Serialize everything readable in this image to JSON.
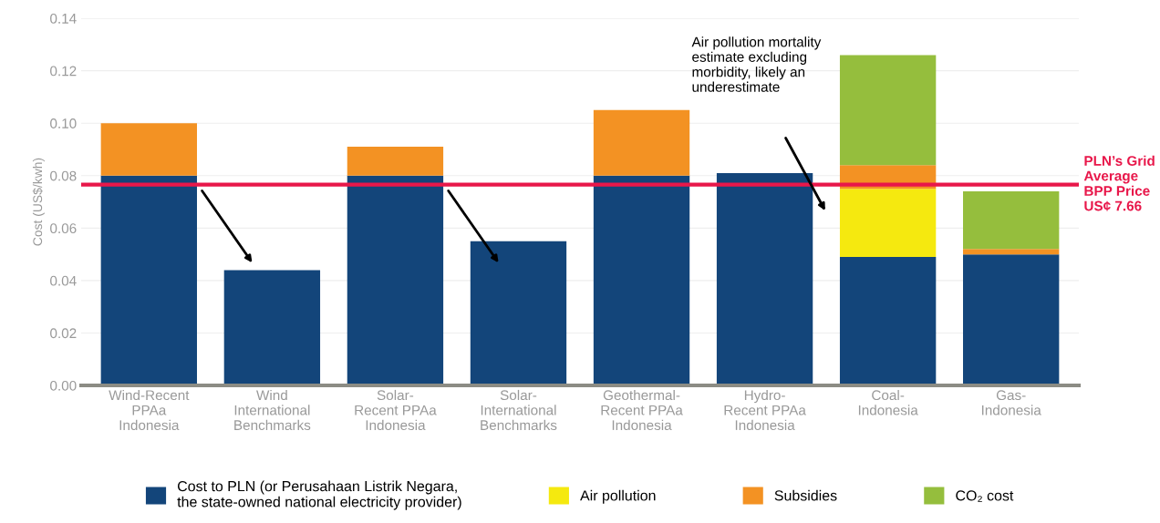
{
  "chart_data": {
    "type": "bar",
    "stacked": true,
    "ylabel": "Cost (US$/kwh)",
    "categories": [
      "Wind-Recent\nPPAa\nIndonesia",
      "Wind\nInternational\nBenchmarks",
      "Solar-\nRecent PPAa\nIndonesia",
      "Solar-\nInternational\nBenchmarks",
      "Geothermal-\nRecent PPAa\nIndonesia",
      "Hydro-\nRecent PPAa\nIndonesia",
      "Coal-\nIndonesia",
      "Gas-\nIndonesia"
    ],
    "series": [
      {
        "name": "Cost to PLN (or Perusahaan Listrik Negara,\nthe state-owned national electricity provider)",
        "color": "#13457a",
        "values": [
          0.08,
          0.044,
          0.08,
          0.055,
          0.08,
          0.081,
          0.049,
          0.05
        ]
      },
      {
        "name": "Air pollution",
        "color": "#f5e90f",
        "values": [
          0,
          0,
          0,
          0,
          0,
          0,
          0.026,
          0
        ]
      },
      {
        "name": "Subsidies",
        "color": "#f39223",
        "values": [
          0.02,
          0,
          0.011,
          0,
          0.025,
          0,
          0.009,
          0.002
        ]
      },
      {
        "name": "CO₂ cost",
        "color": "#95be3d",
        "values": [
          0,
          0,
          0,
          0,
          0,
          0,
          0.042,
          0.022
        ]
      }
    ],
    "ylim": [
      0,
      0.14
    ],
    "yticks": [
      {
        "value": 0,
        "label": "0.00"
      },
      {
        "value": 0.02,
        "label": "0.02"
      },
      {
        "value": 0.04,
        "label": "0.04"
      },
      {
        "value": 0.06,
        "label": "0.06"
      },
      {
        "value": 0.08,
        "label": "0.08"
      },
      {
        "value": 0.1,
        "label": "0.10"
      },
      {
        "value": 0.12,
        "label": "0.12"
      },
      {
        "value": 0.14,
        "label": "0.14"
      }
    ],
    "grid": "y",
    "legend": "bottom",
    "ref_lines": [
      {
        "axis": "y",
        "value": 0.0766,
        "label": "PLN’s Grid\nAverage\nBPP Price\nUS¢ 7.66",
        "color": "#e8174a"
      }
    ],
    "annotations": [
      "Air pollution mortality\nestimate excluding\nmorbidity, likely an\nunderestimate"
    ]
  }
}
